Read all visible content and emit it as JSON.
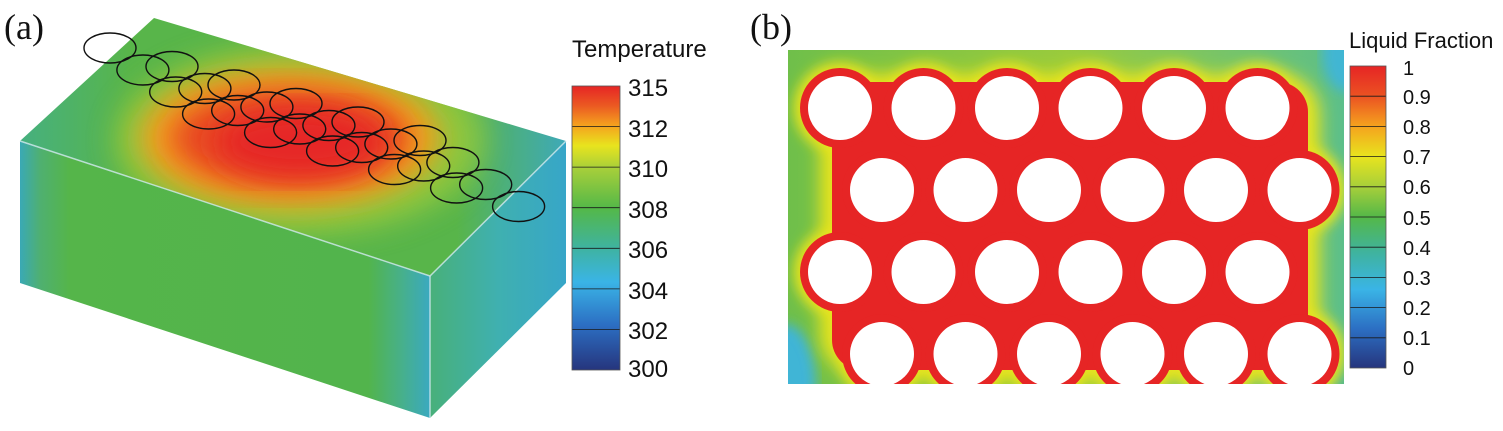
{
  "panels": {
    "a": {
      "label": "(a)",
      "legend_title": "Temperature",
      "ticks": [
        "315",
        "312",
        "310",
        "308",
        "306",
        "304",
        "302",
        "300"
      ]
    },
    "b": {
      "label": "(b)",
      "legend_title": "Liquid Fraction",
      "ticks": [
        "1",
        "0.9",
        "0.8",
        "0.7",
        "0.6",
        "0.5",
        "0.4",
        "0.3",
        "0.2",
        "0.1",
        "0"
      ]
    }
  },
  "colors": {
    "red": "#e62525",
    "orange": "#f58a1f",
    "yellow": "#e8e41e",
    "green": "#54b848",
    "teal": "#3fb3a8",
    "cyan": "#3ab4e6",
    "blue": "#2255b5",
    "navy": "#26357d"
  }
}
